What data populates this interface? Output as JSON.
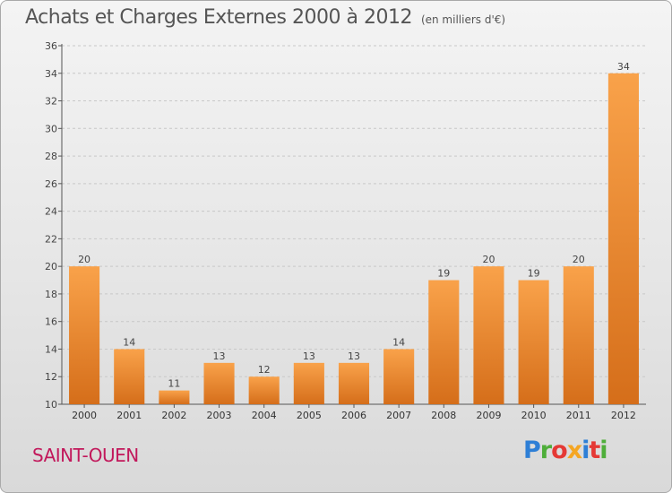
{
  "title": "Achats et Charges Externes 2000 à 2012",
  "unit": "(en milliers d'€)",
  "city": "SAINT-OUEN",
  "brand": "Proxiti",
  "brand_colors": [
    "#2e7fd6",
    "#4fae3a",
    "#e53935",
    "#f5a623",
    "#2e7fd6",
    "#e53935",
    "#4fae3a"
  ],
  "colors": {
    "bar_light": "#f9a24a",
    "bar_dark": "#d56e1a",
    "axis": "#555555",
    "grid": "#c8c8c8",
    "city": "#c2185b"
  },
  "chart_data": {
    "type": "bar",
    "categories": [
      "2000",
      "2001",
      "2002",
      "2003",
      "2004",
      "2005",
      "2006",
      "2007",
      "2008",
      "2009",
      "2010",
      "2011",
      "2012"
    ],
    "values": [
      20,
      14,
      11,
      13,
      12,
      13,
      13,
      14,
      19,
      20,
      19,
      20,
      34
    ],
    "ylim": [
      10,
      36
    ],
    "yticks": [
      10,
      12,
      14,
      16,
      18,
      20,
      22,
      24,
      26,
      28,
      30,
      32,
      34,
      36
    ],
    "grid": "horizontal dashed",
    "legend": "none"
  }
}
